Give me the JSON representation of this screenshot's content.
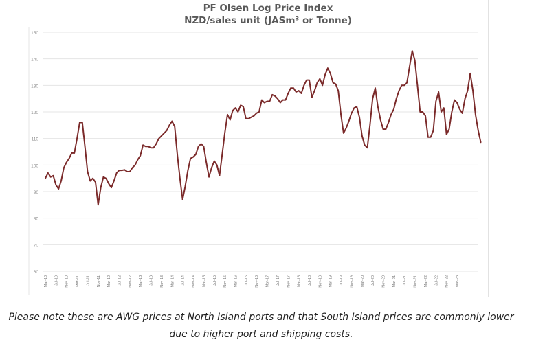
{
  "chart_data": {
    "type": "line",
    "title": "PF Olsen Log Price Index",
    "subtitle": "NZD/sales unit (JASm³ or Tonne)",
    "xlabel": "",
    "ylabel": "",
    "ylim": [
      60,
      150
    ],
    "yticks": [
      60,
      70,
      80,
      90,
      100,
      110,
      120,
      130,
      140,
      150
    ],
    "grid": true,
    "legend": "none",
    "line_color": "#7b2a2a",
    "xticks": [
      "Mar-10",
      "Jul-10",
      "Nov-10",
      "Mar-11",
      "Jul-11",
      "Nov-11",
      "Mar-12",
      "Jul-12",
      "Nov-12",
      "Mar-13",
      "Jul-13",
      "Nov-13",
      "Mar-14",
      "Jul-14",
      "Nov-14",
      "Mar-15",
      "Jul-15",
      "Nov-15",
      "Mar-16",
      "Jul-16",
      "Nov-16",
      "Mar-17",
      "Jul-17",
      "Nov-17",
      "Mar-18",
      "Jul-18",
      "Nov-18",
      "Mar-19",
      "Jul-19",
      "Nov-19",
      "Mar-20",
      "Jul-20",
      "Nov-20",
      "Mar-21",
      "Jul-21",
      "Nov-21",
      "Mar-22",
      "Jul-22",
      "Nov-22",
      "Mar-23"
    ],
    "series": [
      {
        "name": "Log Price Index",
        "values": [
          95,
          97,
          95.5,
          96,
          92.5,
          91,
          94,
          99,
          101,
          102.5,
          104.5,
          104.5,
          110,
          116,
          116,
          107,
          97.5,
          94,
          95,
          93.5,
          85,
          91.5,
          95.5,
          95,
          93,
          91.5,
          94,
          97,
          98,
          98,
          98.2,
          97.5,
          97.5,
          99,
          100,
          102,
          103.5,
          107.5,
          107,
          107,
          106.5,
          106.5,
          108,
          110,
          111,
          112,
          113,
          115,
          116.5,
          114.5,
          104,
          95,
          87,
          92,
          98,
          102.5,
          103,
          104,
          107,
          108,
          107,
          101,
          95.5,
          99,
          101.5,
          100,
          96,
          104,
          112,
          119,
          117,
          120.5,
          121.5,
          120,
          122.5,
          122,
          117.5,
          117.5,
          118,
          118.5,
          119.5,
          120,
          124.5,
          123.5,
          124,
          124,
          126.5,
          126,
          125,
          123.5,
          124.5,
          124.5,
          127,
          129,
          129,
          127.5,
          128,
          127,
          130,
          132,
          132,
          125.5,
          128,
          131,
          132.5,
          130,
          134,
          136.5,
          134.5,
          131,
          130.5,
          128,
          119,
          112,
          114,
          116.5,
          119.5,
          121.5,
          122,
          118,
          111,
          107.5,
          106.5,
          115,
          125,
          129,
          122,
          117,
          113.5,
          113.5,
          116,
          119,
          121,
          125,
          128,
          130,
          130,
          131,
          137,
          143,
          139.5,
          130,
          120,
          120,
          118.5,
          110.5,
          110.5,
          113,
          124,
          127.5,
          120,
          121.5,
          111.5,
          113.5,
          120,
          124.5,
          123.5,
          121,
          119.5,
          125,
          128,
          134.5,
          128,
          119,
          113,
          108.5
        ]
      }
    ]
  },
  "caption": {
    "line1": "Please note these are AWG prices at North Island ports and that South Island prices are commonly lower",
    "line2": "due to higher port and shipping costs."
  }
}
